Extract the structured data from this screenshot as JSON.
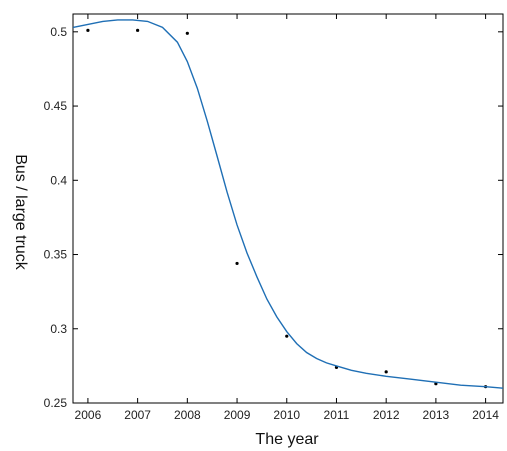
{
  "chart_data": {
    "type": "scatter",
    "title": "",
    "xlabel": "The year",
    "ylabel": "Bus / large truck",
    "xlim": [
      2005.7,
      2014.35
    ],
    "ylim": [
      0.25,
      0.512
    ],
    "x_ticks": [
      "2006",
      "2007",
      "2008",
      "2009",
      "2010",
      "2011",
      "2012",
      "2013",
      "2014"
    ],
    "y_ticks": [
      "0.25",
      "0.3",
      "0.35",
      "0.4",
      "0.45",
      "0.5"
    ],
    "grid": false,
    "legend": "none",
    "series": [
      {
        "kind": "points",
        "x": [
          2006,
          2007,
          2008,
          2009,
          2010,
          2011,
          2012,
          2013,
          2014
        ],
        "y": [
          0.501,
          0.501,
          0.499,
          0.344,
          0.295,
          0.274,
          0.271,
          0.263,
          0.261
        ],
        "color": "#000000"
      },
      {
        "kind": "line",
        "x": [
          2005.7,
          2006.0,
          2006.3,
          2006.6,
          2006.9,
          2007.2,
          2007.5,
          2007.8,
          2008.0,
          2008.2,
          2008.4,
          2008.6,
          2008.8,
          2009.0,
          2009.2,
          2009.4,
          2009.6,
          2009.8,
          2010.0,
          2010.2,
          2010.4,
          2010.6,
          2010.8,
          2011.0,
          2011.3,
          2011.6,
          2012.0,
          2012.5,
          2013.0,
          2013.5,
          2014.0,
          2014.35
        ],
        "y": [
          0.503,
          0.505,
          0.507,
          0.508,
          0.508,
          0.507,
          0.503,
          0.493,
          0.48,
          0.462,
          0.44,
          0.416,
          0.392,
          0.37,
          0.351,
          0.335,
          0.32,
          0.308,
          0.298,
          0.29,
          0.284,
          0.28,
          0.277,
          0.275,
          0.272,
          0.27,
          0.268,
          0.266,
          0.264,
          0.262,
          0.261,
          0.26
        ],
        "color": "#1f6fb5"
      }
    ]
  }
}
